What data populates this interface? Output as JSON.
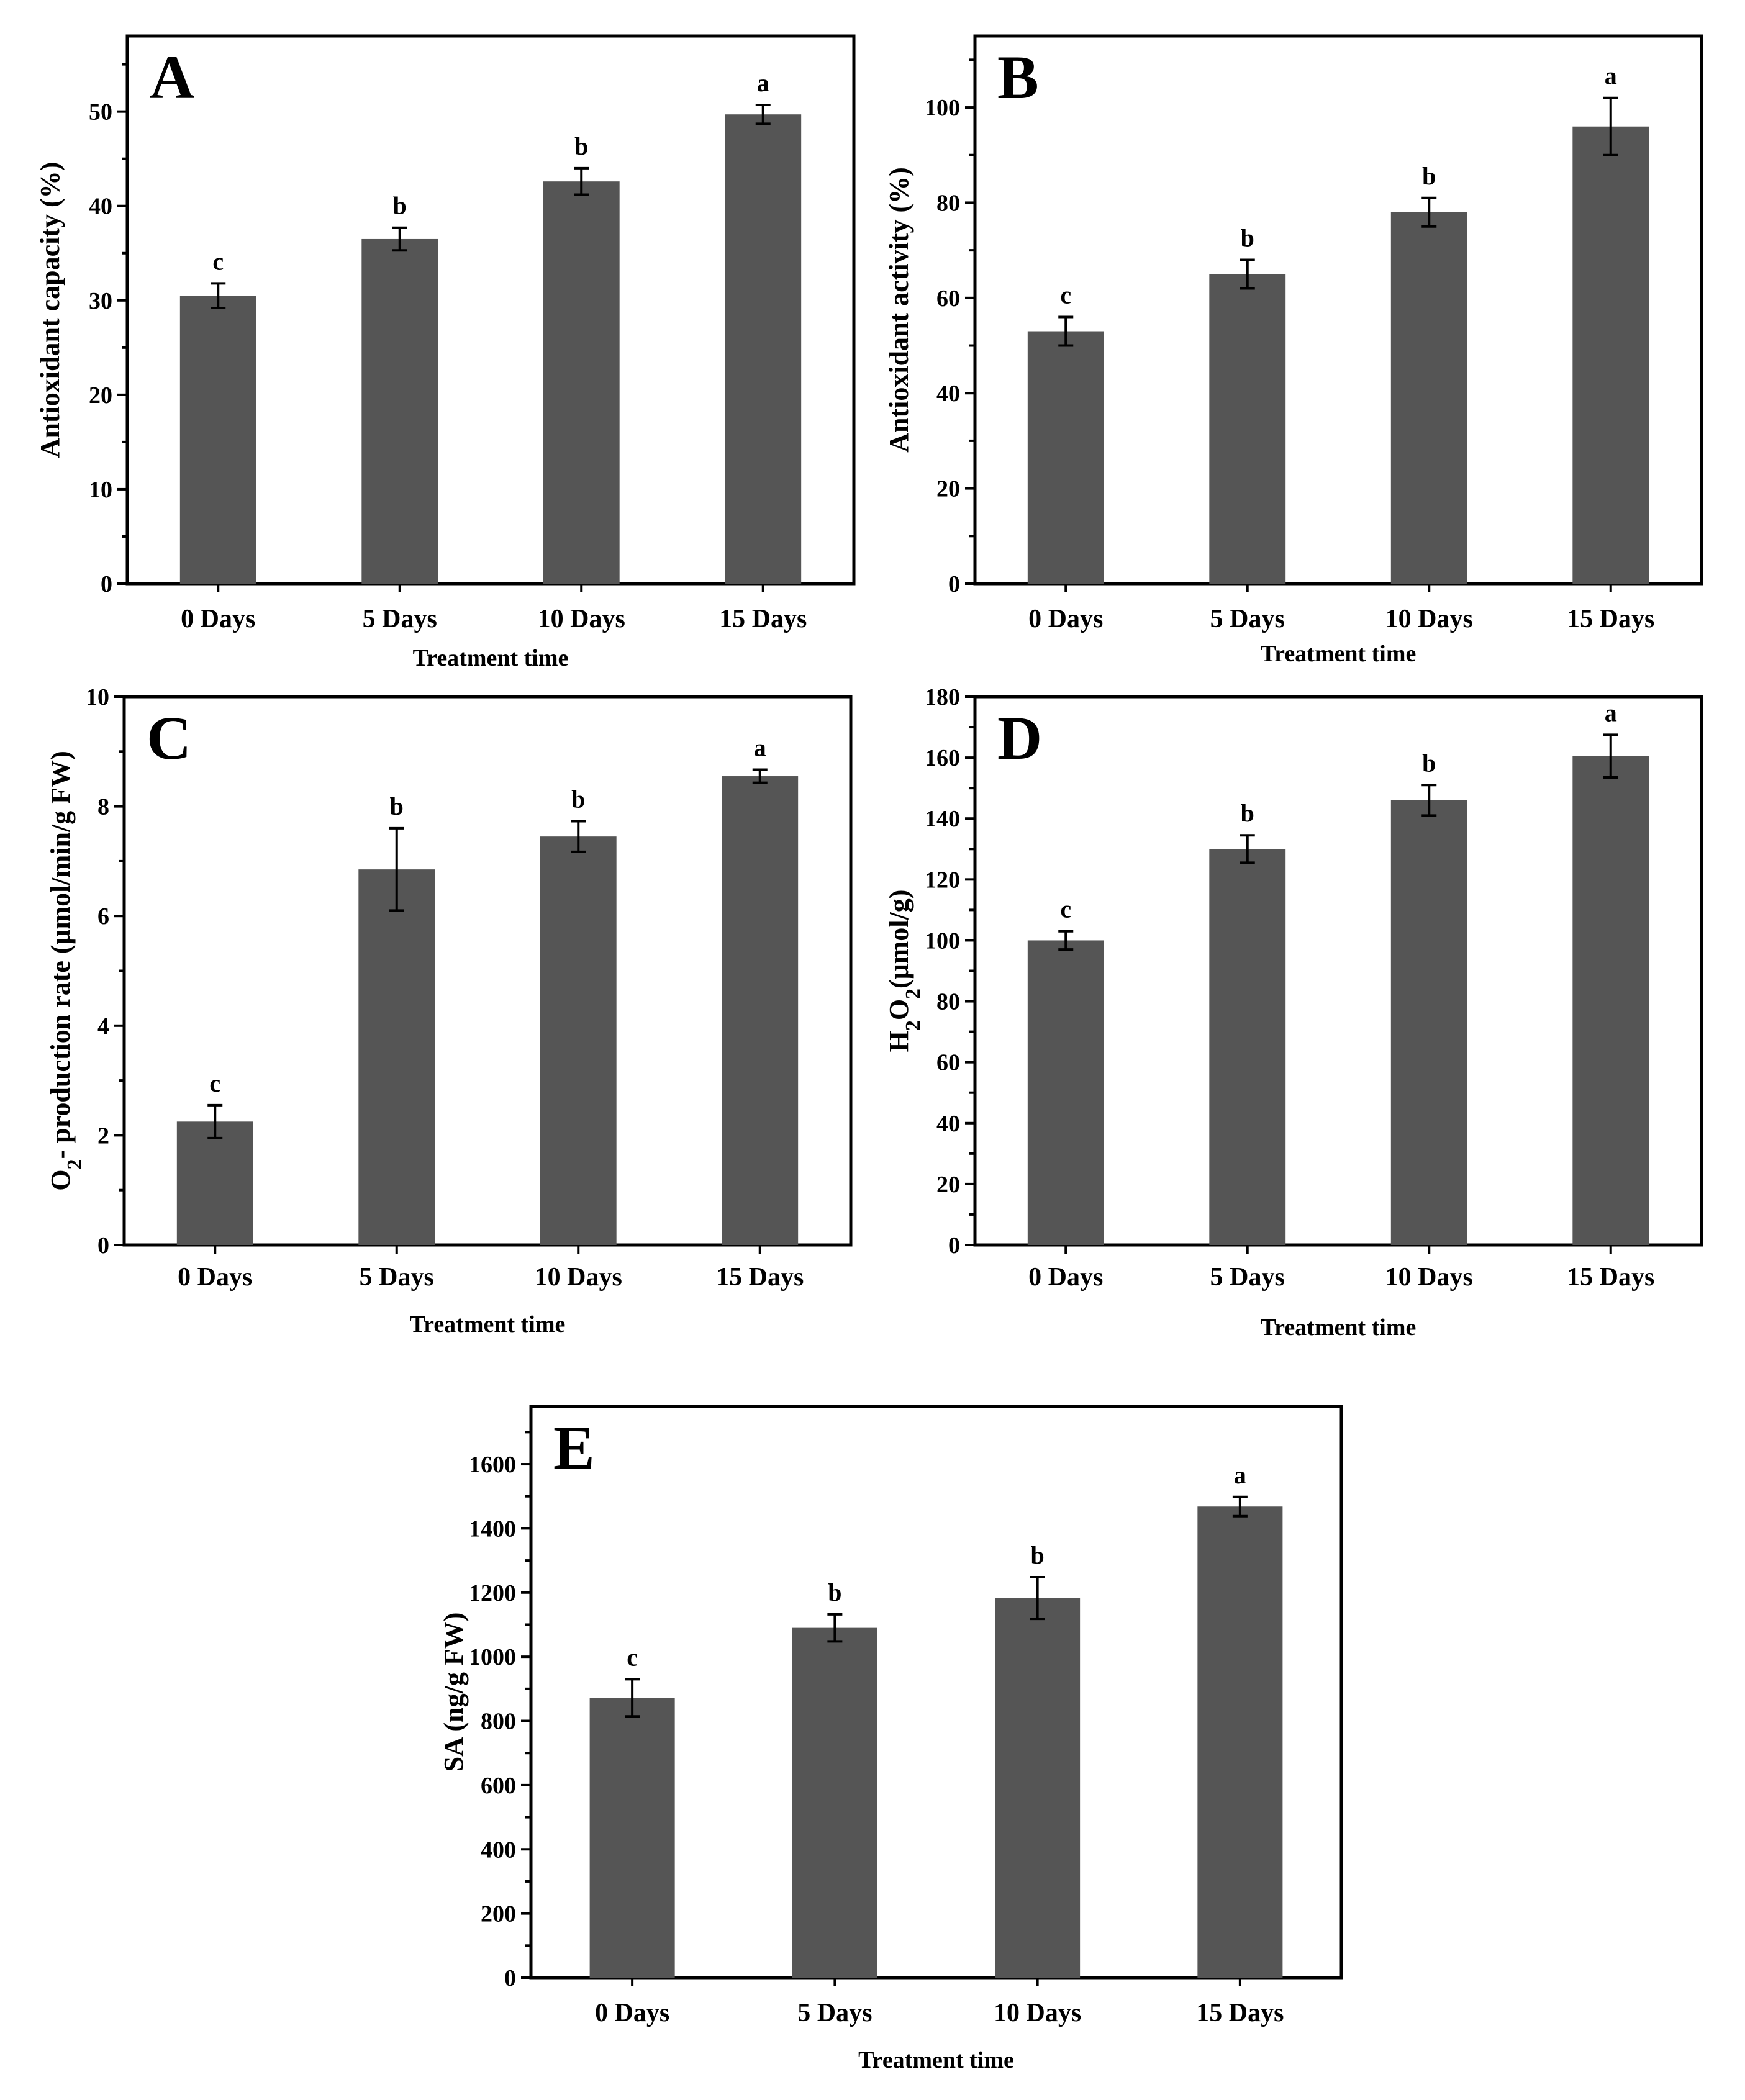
{
  "colors": {
    "bar": "#555555",
    "axis": "#000000",
    "background": "#ffffff"
  },
  "chart_data": [
    {
      "panel": "A",
      "type": "bar",
      "categories": [
        "0 Days",
        "5 Days",
        "10 Days",
        "15 Days"
      ],
      "values": [
        30.5,
        36.5,
        42.6,
        49.7
      ],
      "errors": [
        1.3,
        1.2,
        1.4,
        1.0
      ],
      "significance": [
        "c",
        "b",
        "b",
        "a"
      ],
      "xlabel": "Treatment time",
      "ylabel": "Antioxidant capacity (%)",
      "ylim": [
        0,
        58
      ],
      "yticks": [
        0,
        10,
        20,
        30,
        40,
        50
      ]
    },
    {
      "panel": "B",
      "type": "bar",
      "categories": [
        "0 Days",
        "5 Days",
        "10 Days",
        "15 Days"
      ],
      "values": [
        53,
        65,
        78,
        96
      ],
      "errors": [
        3,
        3,
        3,
        6
      ],
      "significance": [
        "c",
        "b",
        "b",
        "a"
      ],
      "xlabel": "Treatment time",
      "ylabel": "Antioxidant activity (%)",
      "ylim": [
        0,
        115
      ],
      "yticks": [
        0,
        20,
        40,
        60,
        80,
        100
      ]
    },
    {
      "panel": "C",
      "type": "bar",
      "categories": [
        "0 Days",
        "5 Days",
        "10 Days",
        "15 Days"
      ],
      "values": [
        2.25,
        6.85,
        7.45,
        8.55
      ],
      "errors": [
        0.3,
        0.75,
        0.28,
        0.12
      ],
      "significance": [
        "c",
        "b",
        "b",
        "a"
      ],
      "xlabel": "Treatment time",
      "ylabel": "O2- production rate (μmol/min/g FW)",
      "ylim": [
        0,
        10
      ],
      "yticks": [
        0,
        2,
        4,
        6,
        8,
        10
      ]
    },
    {
      "panel": "D",
      "type": "bar",
      "categories": [
        "0 Days",
        "5 Days",
        "10 Days",
        "15 Days"
      ],
      "values": [
        100,
        130,
        146,
        160.5
      ],
      "errors": [
        3,
        4.5,
        5,
        7
      ],
      "significance": [
        "c",
        "b",
        "b",
        "a"
      ],
      "xlabel": "Treatment time",
      "ylabel": "H2O2(μmol/g)",
      "ylim": [
        0,
        180
      ],
      "yticks": [
        0,
        20,
        40,
        60,
        80,
        100,
        120,
        140,
        160,
        180
      ]
    },
    {
      "panel": "E",
      "type": "bar",
      "categories": [
        "0 Days",
        "5 Days",
        "10 Days",
        "15 Days"
      ],
      "values": [
        872,
        1090,
        1183,
        1468
      ],
      "errors": [
        58,
        42,
        65,
        30
      ],
      "significance": [
        "c",
        "b",
        "b",
        "a"
      ],
      "xlabel": "Treatment time",
      "ylabel": "SA (ng/g FW)",
      "ylim": [
        0,
        1780
      ],
      "yticks": [
        0,
        200,
        400,
        600,
        800,
        1000,
        1200,
        1400,
        1600
      ]
    }
  ]
}
